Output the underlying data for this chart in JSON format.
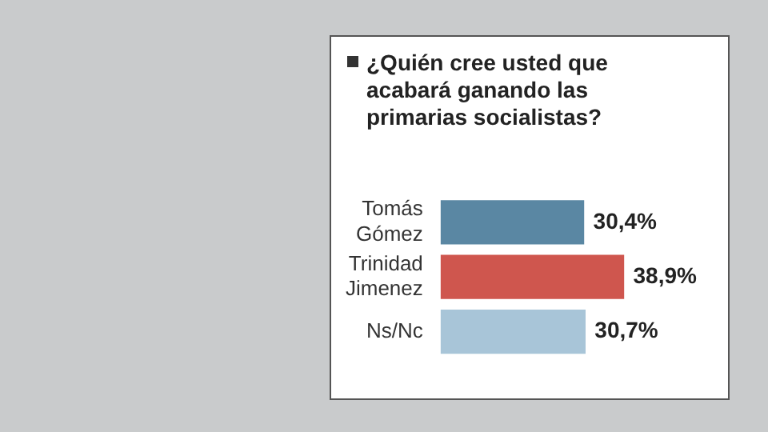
{
  "chart_data": {
    "type": "bar",
    "orientation": "horizontal",
    "title": "¿Quién cree usted que acabará ganando las primarias socialistas?",
    "categories": [
      "Tomás Gómez",
      "Trinidad Jimenez",
      "Ns/Nc"
    ],
    "values": [
      30.4,
      38.9,
      30.7
    ],
    "colors": [
      "#5a87a3",
      "#cf564e",
      "#a8c5d8"
    ],
    "value_labels": [
      "30,4%",
      "38,9%",
      "30,7%"
    ],
    "tick_labels": "y"
  }
}
